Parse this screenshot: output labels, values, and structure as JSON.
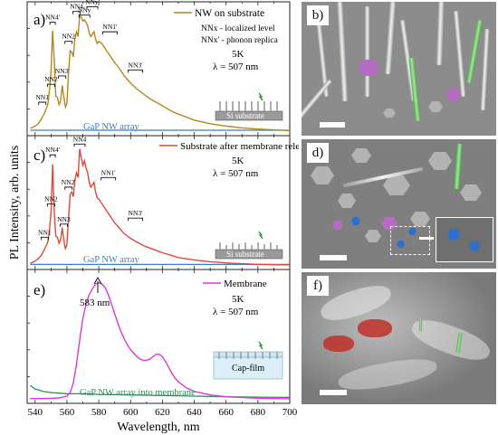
{
  "chart_data": [
    {
      "panel": "a)",
      "type": "line",
      "series": [
        {
          "name": "NW on substrate",
          "color": "#b08a1e",
          "x": [
            537,
            540,
            542,
            544,
            546,
            548,
            549,
            550,
            551,
            552,
            553,
            554,
            555,
            556,
            557,
            558,
            559,
            560,
            561,
            562,
            563,
            564,
            565,
            566,
            567,
            568,
            569,
            570,
            571,
            572,
            573,
            574,
            575,
            576,
            577,
            578,
            579,
            580,
            582,
            584,
            586,
            588,
            590,
            592,
            594,
            596,
            598,
            600,
            604,
            608,
            612,
            616,
            620,
            625,
            630,
            640,
            650,
            660,
            670,
            680,
            690,
            700
          ],
          "y": [
            0.03,
            0.05,
            0.07,
            0.11,
            0.16,
            0.23,
            0.35,
            0.51,
            0.85,
            0.6,
            0.3,
            0.29,
            0.23,
            0.26,
            0.39,
            0.3,
            0.21,
            0.24,
            0.5,
            0.68,
            0.67,
            0.63,
            0.78,
            0.84,
            0.8,
            0.98,
            0.96,
            0.93,
            0.94,
            0.92,
            0.89,
            0.83,
            0.8,
            0.82,
            0.84,
            0.78,
            0.74,
            0.76,
            0.74,
            0.7,
            0.66,
            0.62,
            0.58,
            0.55,
            0.51,
            0.47,
            0.44,
            0.41,
            0.36,
            0.32,
            0.28,
            0.25,
            0.22,
            0.18,
            0.15,
            0.1,
            0.07,
            0.05,
            0.035,
            0.025,
            0.018,
            0.012
          ]
        },
        {
          "name": "GaP NW array",
          "color": "#3a7fc4",
          "x": [
            537,
            700
          ],
          "y": [
            0.015,
            0.015
          ]
        }
      ],
      "annotations": [
        "NW on substrate",
        "NNx - localized level",
        "NNx' - phonon replica",
        "5K",
        "λ = 507 nm",
        "Si substrate",
        "GaP NW array"
      ],
      "peak_labels": [
        "NN1",
        "NN1'",
        "NN2",
        "NN2'",
        "NN3",
        "NN3'",
        "NN4",
        "NN4'",
        "NNy",
        "NNy'"
      ]
    },
    {
      "panel": "c)",
      "type": "line",
      "series": [
        {
          "name": "Substrate after membrane release",
          "color": "#e2483a",
          "x": [
            537,
            540,
            542,
            544,
            546,
            548,
            549,
            550,
            551,
            552,
            553,
            554,
            555,
            556,
            557,
            558,
            559,
            560,
            561,
            562,
            563,
            564,
            565,
            566,
            567,
            568,
            569,
            570,
            571,
            572,
            573,
            574,
            575,
            576,
            577,
            578,
            579,
            580,
            582,
            584,
            586,
            588,
            590,
            592,
            594,
            596,
            598,
            600,
            604,
            608,
            612,
            616,
            620,
            625,
            630,
            640,
            650,
            660,
            670,
            680,
            690,
            700
          ],
          "y": [
            0.02,
            0.04,
            0.06,
            0.09,
            0.14,
            0.2,
            0.3,
            0.45,
            0.85,
            0.45,
            0.25,
            0.24,
            0.19,
            0.22,
            0.32,
            0.22,
            0.14,
            0.18,
            0.4,
            0.6,
            0.62,
            0.58,
            0.72,
            0.78,
            0.74,
            0.98,
            0.9,
            0.84,
            0.88,
            0.82,
            0.78,
            0.7,
            0.66,
            0.68,
            0.7,
            0.62,
            0.57,
            0.56,
            0.52,
            0.48,
            0.44,
            0.4,
            0.36,
            0.33,
            0.3,
            0.27,
            0.25,
            0.23,
            0.2,
            0.17,
            0.15,
            0.13,
            0.11,
            0.09,
            0.07,
            0.05,
            0.035,
            0.025,
            0.018,
            0.013,
            0.01,
            0.008
          ]
        },
        {
          "name": "GaP NW array",
          "color": "#3a7fc4",
          "x": [
            537,
            700
          ],
          "y": [
            0.012,
            0.012
          ]
        }
      ],
      "annotations": [
        "Substrate after membrane release",
        "5K",
        "λ = 507 nm",
        "Si substrate",
        "GaP NW array"
      ],
      "peak_labels": [
        "NN1",
        "NN1'",
        "NN2",
        "NN2'",
        "NN3",
        "NN3'",
        "NN4",
        "NN4'"
      ]
    },
    {
      "panel": "e)",
      "type": "line",
      "series": [
        {
          "name": "Membrane",
          "color": "#d83ad8",
          "x": [
            537,
            540,
            545,
            550,
            555,
            560,
            562,
            564,
            566,
            568,
            570,
            572,
            574,
            576,
            578,
            580,
            582,
            584,
            586,
            588,
            590,
            592,
            594,
            596,
            598,
            600,
            602,
            604,
            606,
            608,
            610,
            612,
            614,
            616,
            618,
            620,
            622,
            624,
            626,
            628,
            630,
            635,
            640,
            650,
            660,
            670,
            680,
            690,
            700
          ],
          "y": [
            0.01,
            0.01,
            0.01,
            0.012,
            0.015,
            0.03,
            0.06,
            0.14,
            0.3,
            0.5,
            0.68,
            0.8,
            0.88,
            0.93,
            0.97,
            0.98,
            0.97,
            0.94,
            0.88,
            0.8,
            0.72,
            0.64,
            0.57,
            0.51,
            0.46,
            0.42,
            0.39,
            0.36,
            0.34,
            0.33,
            0.33,
            0.34,
            0.36,
            0.38,
            0.38,
            0.36,
            0.32,
            0.27,
            0.22,
            0.18,
            0.15,
            0.1,
            0.07,
            0.04,
            0.025,
            0.018,
            0.013,
            0.01,
            0.008
          ]
        },
        {
          "name": "GaP NW array into membrane",
          "color": "#2e8b57",
          "x": [
            537,
            540,
            545,
            550,
            555,
            560,
            570,
            580,
            600,
            620,
            640,
            660,
            680,
            700
          ],
          "y": [
            0.12,
            0.09,
            0.07,
            0.06,
            0.055,
            0.05,
            0.05,
            0.045,
            0.04,
            0.035,
            0.03,
            0.025,
            0.022,
            0.02
          ]
        }
      ],
      "annotations": [
        "Membrane",
        "5K",
        "λ = 507 nm",
        "583 nm",
        "Cap-film",
        "GaP NW array into membrane"
      ]
    }
  ],
  "axes": {
    "xlabel": "Wavelength, nm",
    "ylabel": "PL Intensity, arb. units",
    "xlim": [
      535,
      700
    ],
    "x_ticks": [
      "540",
      "560",
      "580",
      "600",
      "620",
      "640",
      "660",
      "680",
      "700"
    ]
  },
  "panels": {
    "a": {
      "label": "a)",
      "legend": "NW on substrate",
      "note1": "NNx - localized level",
      "note2": "NNx' - phonon replica",
      "temp": "5K",
      "lambda": "λ = 507 nm",
      "substrate": "Si substrate",
      "series2": "GaP NW array"
    },
    "c": {
      "label": "c)",
      "legend": "Substrate after membrane release",
      "temp": "5K",
      "lambda": "λ = 507 nm",
      "substrate": "Si substrate",
      "series2": "GaP NW array"
    },
    "e": {
      "label": "e)",
      "legend": "Membrane",
      "temp": "5K",
      "lambda": "λ = 507 nm",
      "peak": "583 nm",
      "film": "Cap-film",
      "series2": "GaP NW array into membrane"
    }
  },
  "sem": {
    "b": "b)",
    "d": "d)",
    "f": "f)"
  },
  "colors": {
    "gold": "#b08a1e",
    "red": "#e2483a",
    "magenta": "#d83ad8",
    "blue": "#3a7fc4",
    "green": "#2e8b57",
    "sem_purple": "#b66cc4",
    "sem_blue": "#2d6ed1",
    "sem_red": "#c0302a",
    "sem_green": "#5cc25c"
  }
}
